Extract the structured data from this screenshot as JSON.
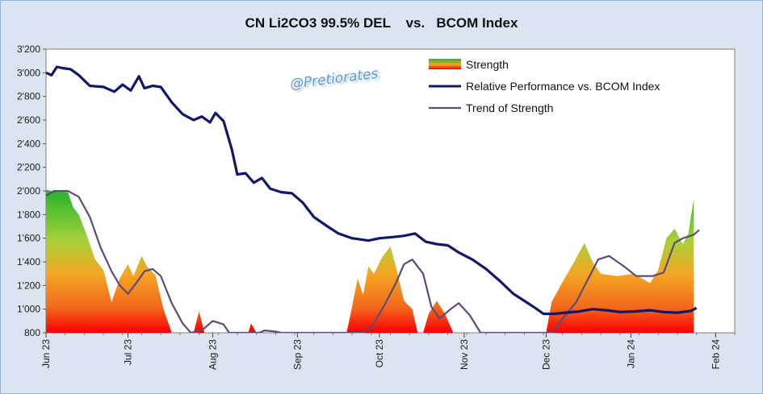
{
  "title": "CN Li2CO3 99.5% DEL    vs.   BCOM Index",
  "watermark": "@Pretiorates",
  "colors": {
    "panel": "#dbe5f1",
    "plot_bg": "#ffffff",
    "performance_line": "#10186e",
    "trend_line": "#604a7b",
    "strength_top": "#2db52d",
    "strength_mid": "#f5a623",
    "strength_bottom": "#ff0000"
  },
  "legend": {
    "placement": "top-right",
    "strength": "Strength",
    "performance": "Relative Performance vs. BCOM Index",
    "trend": "Trend of Strength"
  },
  "chart_data": {
    "type": "line",
    "title": "CN Li2CO3 99.5% DEL    vs.   BCOM Index",
    "ylim": [
      800,
      3200
    ],
    "y_ticks": [
      800,
      1000,
      1200,
      1400,
      1600,
      1800,
      2000,
      2200,
      2400,
      2600,
      2800,
      3000,
      3200
    ],
    "y_tick_labels": [
      "800",
      "1'000",
      "1'200",
      "1'400",
      "1'600",
      "1'800",
      "2'000",
      "2'200",
      "2'400",
      "2'600",
      "2'800",
      "3'000",
      "3'200"
    ],
    "xlim": [
      "2023-06-01",
      "2024-02-08"
    ],
    "x_ticks": [
      {
        "date": "2023-06-01",
        "label": "Jun 23"
      },
      {
        "date": "2023-07-01",
        "label": "Jul 23"
      },
      {
        "date": "2023-08-01",
        "label": "Aug 23"
      },
      {
        "date": "2023-09-01",
        "label": "Sep 23"
      },
      {
        "date": "2023-10-01",
        "label": "Oct 23"
      },
      {
        "date": "2023-11-01",
        "label": "Nov 23"
      },
      {
        "date": "2023-12-01",
        "label": "Dec 23"
      },
      {
        "date": "2024-01-01",
        "label": "Jan 24"
      },
      {
        "date": "2024-02-01",
        "label": "Feb 24"
      }
    ],
    "grid": false,
    "series": [
      {
        "name": "Relative Performance vs. BCOM Index",
        "kind": "line",
        "points": [
          [
            "2023-06-01",
            3000
          ],
          [
            "2023-06-03",
            2980
          ],
          [
            "2023-06-05",
            3050
          ],
          [
            "2023-06-07",
            3040
          ],
          [
            "2023-06-10",
            3030
          ],
          [
            "2023-06-13",
            2980
          ],
          [
            "2023-06-17",
            2890
          ],
          [
            "2023-06-22",
            2880
          ],
          [
            "2023-06-26",
            2840
          ],
          [
            "2023-06-29",
            2900
          ],
          [
            "2023-07-02",
            2850
          ],
          [
            "2023-07-05",
            2970
          ],
          [
            "2023-07-07",
            2870
          ],
          [
            "2023-07-10",
            2890
          ],
          [
            "2023-07-13",
            2880
          ],
          [
            "2023-07-17",
            2750
          ],
          [
            "2023-07-21",
            2650
          ],
          [
            "2023-07-25",
            2600
          ],
          [
            "2023-07-28",
            2630
          ],
          [
            "2023-07-31",
            2580
          ],
          [
            "2023-08-02",
            2660
          ],
          [
            "2023-08-05",
            2590
          ],
          [
            "2023-08-08",
            2350
          ],
          [
            "2023-08-10",
            2140
          ],
          [
            "2023-08-13",
            2150
          ],
          [
            "2023-08-16",
            2070
          ],
          [
            "2023-08-19",
            2110
          ],
          [
            "2023-08-22",
            2020
          ],
          [
            "2023-08-26",
            1990
          ],
          [
            "2023-08-30",
            1980
          ],
          [
            "2023-09-03",
            1900
          ],
          [
            "2023-09-07",
            1780
          ],
          [
            "2023-09-12",
            1700
          ],
          [
            "2023-09-16",
            1640
          ],
          [
            "2023-09-21",
            1600
          ],
          [
            "2023-09-27",
            1580
          ],
          [
            "2023-10-01",
            1600
          ],
          [
            "2023-10-06",
            1610
          ],
          [
            "2023-10-10",
            1620
          ],
          [
            "2023-10-14",
            1640
          ],
          [
            "2023-10-18",
            1570
          ],
          [
            "2023-10-22",
            1550
          ],
          [
            "2023-10-26",
            1540
          ],
          [
            "2023-10-30",
            1480
          ],
          [
            "2023-11-04",
            1420
          ],
          [
            "2023-11-09",
            1340
          ],
          [
            "2023-11-14",
            1240
          ],
          [
            "2023-11-19",
            1130
          ],
          [
            "2023-11-23",
            1070
          ],
          [
            "2023-11-27",
            1010
          ],
          [
            "2023-11-30",
            960
          ],
          [
            "2023-12-04",
            960
          ],
          [
            "2023-12-08",
            970
          ],
          [
            "2023-12-13",
            980
          ],
          [
            "2023-12-18",
            1000
          ],
          [
            "2023-12-23",
            990
          ],
          [
            "2023-12-28",
            975
          ],
          [
            "2024-01-02",
            980
          ],
          [
            "2024-01-08",
            990
          ],
          [
            "2024-01-13",
            975
          ],
          [
            "2024-01-18",
            970
          ],
          [
            "2024-01-23",
            985
          ],
          [
            "2024-01-25",
            1010
          ]
        ]
      },
      {
        "name": "Trend of Strength",
        "kind": "line",
        "points": [
          [
            "2023-06-01",
            1960
          ],
          [
            "2023-06-04",
            2000
          ],
          [
            "2023-06-09",
            2000
          ],
          [
            "2023-06-13",
            1950
          ],
          [
            "2023-06-17",
            1780
          ],
          [
            "2023-06-21",
            1520
          ],
          [
            "2023-06-25",
            1320
          ],
          [
            "2023-06-28",
            1200
          ],
          [
            "2023-07-01",
            1130
          ],
          [
            "2023-07-04",
            1220
          ],
          [
            "2023-07-07",
            1320
          ],
          [
            "2023-07-10",
            1340
          ],
          [
            "2023-07-13",
            1280
          ],
          [
            "2023-07-17",
            1050
          ],
          [
            "2023-07-21",
            880
          ],
          [
            "2023-07-24",
            800
          ],
          [
            "2023-07-28",
            820
          ],
          [
            "2023-08-01",
            900
          ],
          [
            "2023-08-05",
            870
          ],
          [
            "2023-08-07",
            800
          ],
          [
            "2023-08-18",
            800
          ],
          [
            "2023-08-20",
            820
          ],
          [
            "2023-08-24",
            810
          ],
          [
            "2023-08-26",
            800
          ],
          [
            "2023-09-24",
            800
          ],
          [
            "2023-09-28",
            840
          ],
          [
            "2023-10-03",
            1040
          ],
          [
            "2023-10-07",
            1220
          ],
          [
            "2023-10-10",
            1380
          ],
          [
            "2023-10-13",
            1420
          ],
          [
            "2023-10-17",
            1300
          ],
          [
            "2023-10-20",
            1020
          ],
          [
            "2023-10-23",
            920
          ],
          [
            "2023-10-27",
            1000
          ],
          [
            "2023-10-30",
            1050
          ],
          [
            "2023-11-03",
            950
          ],
          [
            "2023-11-07",
            800
          ],
          [
            "2023-12-03",
            800
          ],
          [
            "2023-12-07",
            920
          ],
          [
            "2023-12-12",
            1060
          ],
          [
            "2023-12-16",
            1240
          ],
          [
            "2023-12-20",
            1420
          ],
          [
            "2023-12-24",
            1450
          ],
          [
            "2023-12-29",
            1370
          ],
          [
            "2024-01-03",
            1280
          ],
          [
            "2024-01-09",
            1280
          ],
          [
            "2024-01-13",
            1310
          ],
          [
            "2024-01-17",
            1560
          ],
          [
            "2024-01-20",
            1600
          ],
          [
            "2024-01-24",
            1630
          ],
          [
            "2024-01-26",
            1670
          ]
        ]
      },
      {
        "name": "Strength",
        "kind": "area",
        "points": [
          [
            "2023-06-01",
            2010
          ],
          [
            "2023-06-03",
            2000
          ],
          [
            "2023-06-09",
            1990
          ],
          [
            "2023-06-11",
            1860
          ],
          [
            "2023-06-13",
            1800
          ],
          [
            "2023-06-16",
            1620
          ],
          [
            "2023-06-19",
            1420
          ],
          [
            "2023-06-22",
            1330
          ],
          [
            "2023-06-25",
            1060
          ],
          [
            "2023-06-28",
            1260
          ],
          [
            "2023-07-01",
            1380
          ],
          [
            "2023-07-03",
            1280
          ],
          [
            "2023-07-06",
            1450
          ],
          [
            "2023-07-08",
            1360
          ],
          [
            "2023-07-11",
            1290
          ],
          [
            "2023-07-14",
            1000
          ],
          [
            "2023-07-17",
            800
          ],
          [
            "2023-07-25",
            800
          ],
          [
            "2023-07-27",
            980
          ],
          [
            "2023-07-29",
            800
          ],
          [
            "2023-08-14",
            800
          ],
          [
            "2023-08-15",
            880
          ],
          [
            "2023-08-17",
            800
          ],
          [
            "2023-09-19",
            800
          ],
          [
            "2023-09-21",
            1020
          ],
          [
            "2023-09-23",
            1260
          ],
          [
            "2023-09-25",
            1120
          ],
          [
            "2023-09-27",
            1360
          ],
          [
            "2023-09-29",
            1300
          ],
          [
            "2023-10-02",
            1440
          ],
          [
            "2023-10-05",
            1530
          ],
          [
            "2023-10-07",
            1360
          ],
          [
            "2023-10-10",
            1070
          ],
          [
            "2023-10-13",
            1000
          ],
          [
            "2023-10-15",
            800
          ],
          [
            "2023-10-17",
            800
          ],
          [
            "2023-10-19",
            960
          ],
          [
            "2023-10-22",
            1070
          ],
          [
            "2023-10-25",
            960
          ],
          [
            "2023-10-28",
            800
          ],
          [
            "2023-12-01",
            800
          ],
          [
            "2023-12-03",
            1060
          ],
          [
            "2023-12-07",
            1230
          ],
          [
            "2023-12-11",
            1390
          ],
          [
            "2023-12-15",
            1560
          ],
          [
            "2023-12-18",
            1400
          ],
          [
            "2023-12-21",
            1300
          ],
          [
            "2023-12-27",
            1280
          ],
          [
            "2024-01-02",
            1300
          ],
          [
            "2024-01-08",
            1220
          ],
          [
            "2024-01-11",
            1330
          ],
          [
            "2024-01-14",
            1600
          ],
          [
            "2024-01-17",
            1680
          ],
          [
            "2024-01-20",
            1550
          ],
          [
            "2024-01-22",
            1640
          ],
          [
            "2024-01-24",
            1930
          ],
          [
            "2024-01-24",
            800
          ]
        ]
      }
    ]
  }
}
